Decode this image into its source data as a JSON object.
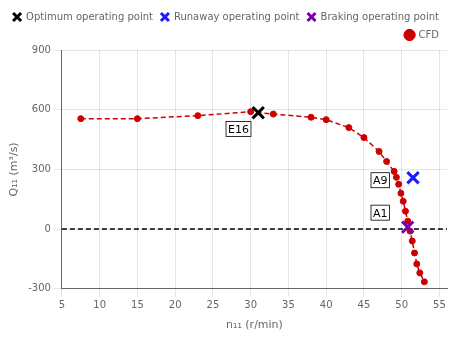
{
  "chart_data": {
    "type": "line",
    "x_label": "n₁₁ (r/min)",
    "y_label": "Q₁₁ (m³/s)",
    "series": [
      {
        "name": "CFD",
        "type": "line",
        "color": "#cc0000",
        "line_style": "dashed",
        "marker": "circle",
        "x": [
          7.5,
          15,
          23,
          30,
          33,
          38,
          40,
          43,
          45,
          47,
          48,
          49,
          49.3,
          49.6,
          49.9,
          50.2,
          50.5,
          50.8,
          51.1,
          51.4,
          51.7,
          52,
          52.4,
          53
        ],
        "values": [
          555,
          555,
          570,
          590,
          578,
          562,
          550,
          510,
          460,
          390,
          340,
          290,
          260,
          225,
          180,
          140,
          90,
          40,
          -10,
          -60,
          -120,
          -175,
          -220,
          -265
        ]
      },
      {
        "name": "Optimum operating point",
        "type": "scatter",
        "color": "#000000",
        "marker": "x",
        "x": [
          31
        ],
        "values": [
          585
        ]
      },
      {
        "name": "Runaway operating point",
        "type": "scatter",
        "color": "#1a1aff",
        "marker": "x",
        "x": [
          51.5
        ],
        "values": [
          258
        ]
      },
      {
        "name": "Braking operating point",
        "type": "scatter",
        "color": "#7700aa",
        "marker": "x",
        "x": [
          50.8
        ],
        "values": [
          10
        ]
      }
    ],
    "reference_lines": [
      {
        "y": 0,
        "color": "#000000",
        "line_style": "dashed"
      }
    ],
    "annotations": [
      {
        "text": "E16",
        "x": 27,
        "y": 475
      },
      {
        "text": "A9",
        "x": 46.2,
        "y": 218
      },
      {
        "text": "A1",
        "x": 46.2,
        "y": 55
      }
    ],
    "xlim": [
      5,
      56
    ],
    "xticks": [
      5,
      10,
      15,
      20,
      25,
      30,
      35,
      40,
      45,
      50,
      55
    ],
    "ylim": [
      -300,
      900
    ],
    "yticks": [
      -300,
      0,
      300,
      600,
      900
    ],
    "grid": true,
    "legend": "upper right"
  }
}
